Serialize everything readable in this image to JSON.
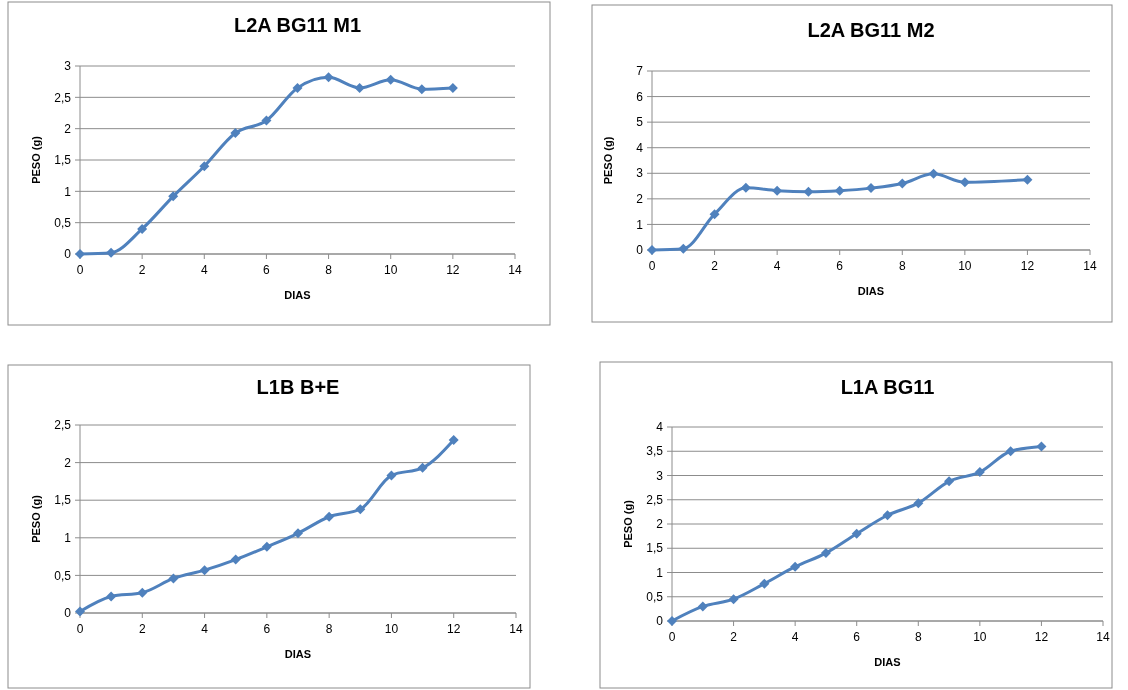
{
  "chart_data": [
    {
      "type": "line",
      "title": "L2A BG11  M1",
      "xlabel": "DIAS",
      "ylabel": "PESO (g)",
      "x": [
        0,
        1,
        2,
        3,
        4,
        5,
        6,
        7,
        8,
        9,
        10,
        11,
        12
      ],
      "series": [
        {
          "color": "#4f81bd",
          "values": [
            0,
            0.02,
            0.4,
            0.92,
            1.4,
            1.93,
            2.13,
            2.65,
            2.82,
            2.65,
            2.78,
            2.63,
            2.65
          ]
        }
      ],
      "xlim": [
        0,
        14
      ],
      "xticks": [
        0,
        2,
        4,
        6,
        8,
        10,
        12,
        14
      ],
      "ylim": [
        0,
        3
      ],
      "yticks": [
        0,
        {
          "value": 0.5,
          "label": "0,5"
        },
        1,
        {
          "value": 1.5,
          "label": "1,5"
        },
        2,
        {
          "value": 2.5,
          "label": "2,5"
        },
        3
      ],
      "grid": "y",
      "marker": "diamond"
    },
    {
      "type": "line",
      "title": "L2A BG11 M2",
      "xlabel": "DIAS",
      "ylabel": "PESO (g)",
      "x": [
        0,
        1,
        2,
        3,
        4,
        5,
        6,
        7,
        8,
        9,
        10,
        12
      ],
      "series": [
        {
          "color": "#4f81bd",
          "values": [
            0,
            0.05,
            1.4,
            2.43,
            2.32,
            2.28,
            2.32,
            2.42,
            2.6,
            2.98,
            2.65,
            2.75
          ]
        }
      ],
      "xlim": [
        0,
        14
      ],
      "xticks": [
        0,
        2,
        4,
        6,
        8,
        10,
        12,
        14
      ],
      "ylim": [
        0,
        7
      ],
      "yticks": [
        0,
        1,
        2,
        3,
        4,
        5,
        6,
        7
      ],
      "grid": "y",
      "marker": "diamond"
    },
    {
      "type": "line",
      "title": "L1B B+E",
      "xlabel": "DIAS",
      "ylabel": "PESO (g)",
      "x": [
        0,
        1,
        2,
        3,
        4,
        5,
        6,
        7,
        8,
        9,
        10,
        11,
        12
      ],
      "series": [
        {
          "color": "#4f81bd",
          "values": [
            0.02,
            0.22,
            0.27,
            0.46,
            0.57,
            0.71,
            0.88,
            1.06,
            1.28,
            1.38,
            1.83,
            1.93,
            2.3
          ]
        }
      ],
      "xlim": [
        0,
        14
      ],
      "xticks": [
        0,
        2,
        4,
        6,
        8,
        10,
        12,
        14
      ],
      "ylim": [
        0,
        2.5
      ],
      "yticks": [
        0,
        {
          "value": 0.5,
          "label": "0,5"
        },
        1,
        {
          "value": 1.5,
          "label": "1,5"
        },
        2,
        {
          "value": 2.5,
          "label": "2,5"
        }
      ],
      "grid": "y",
      "marker": "diamond"
    },
    {
      "type": "line",
      "title": "L1A BG11",
      "xlabel": "DIAS",
      "ylabel": "PESO (g)",
      "x": [
        0,
        1,
        2,
        3,
        4,
        5,
        6,
        7,
        8,
        9,
        10,
        11,
        12
      ],
      "series": [
        {
          "color": "#4f81bd",
          "values": [
            0,
            0.3,
            0.45,
            0.77,
            1.12,
            1.4,
            1.8,
            2.18,
            2.43,
            2.88,
            3.07,
            3.5,
            3.6
          ]
        }
      ],
      "xlim": [
        0,
        14
      ],
      "xticks": [
        0,
        2,
        4,
        6,
        8,
        10,
        12,
        14
      ],
      "ylim": [
        0,
        4
      ],
      "yticks": [
        0,
        {
          "value": 0.5,
          "label": "0,5"
        },
        1,
        {
          "value": 1.5,
          "label": "1,5"
        },
        2,
        {
          "value": 2.5,
          "label": "2,5"
        },
        3,
        {
          "value": 3.5,
          "label": "3,5"
        },
        4
      ],
      "grid": "y",
      "marker": "diamond"
    }
  ]
}
